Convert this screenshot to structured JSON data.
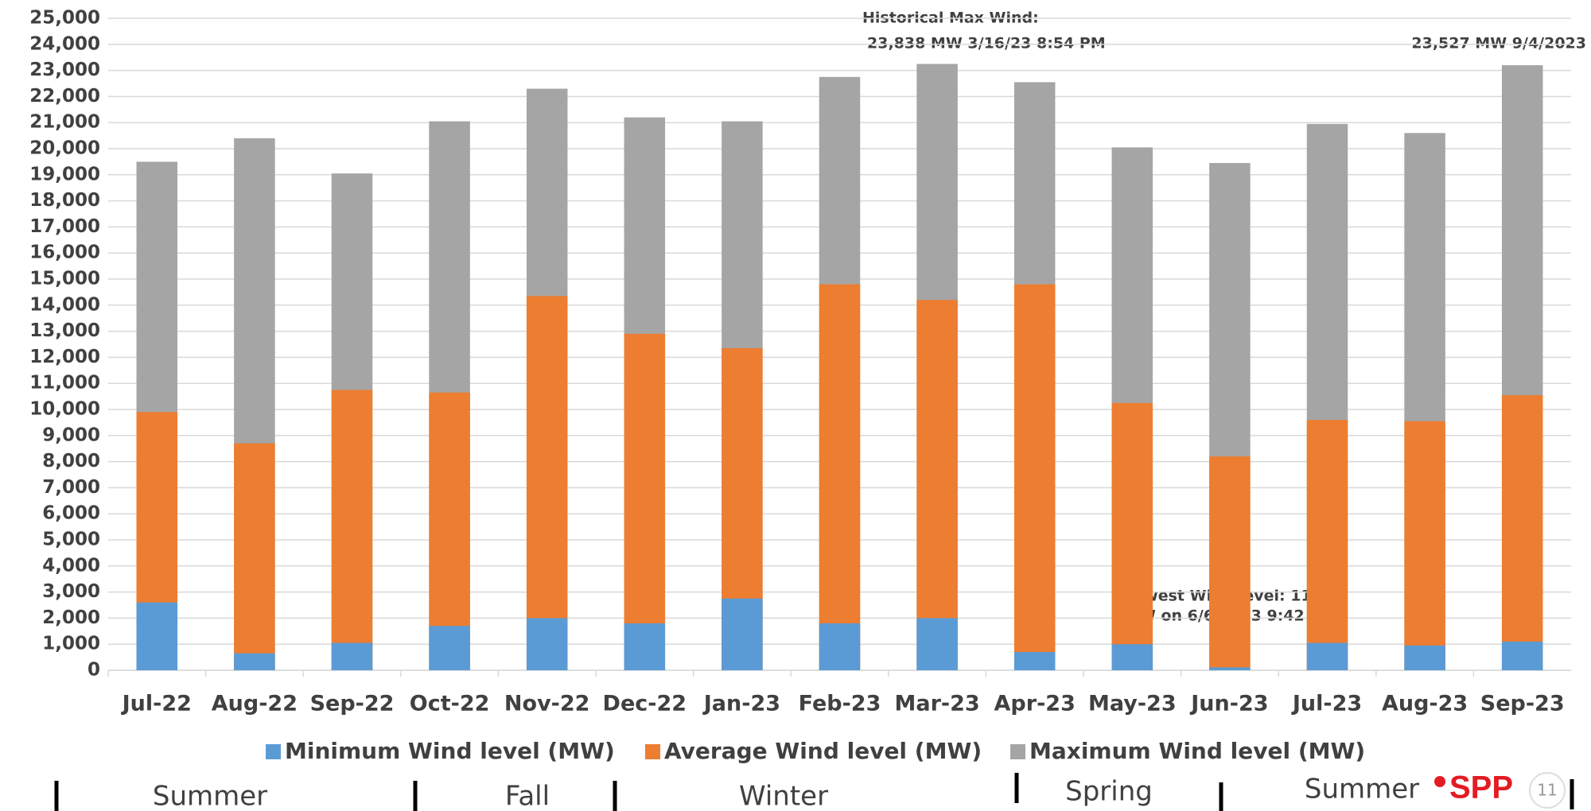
{
  "chart_data": {
    "type": "bar",
    "categories": [
      "Jul-22",
      "Aug-22",
      "Sep-22",
      "Oct-22",
      "Nov-22",
      "Dec-22",
      "Jan-23",
      "Feb-23",
      "Mar-23",
      "Apr-23",
      "May-23",
      "Jun-23",
      "Jul-23",
      "Aug-23",
      "Sep-23"
    ],
    "series": [
      {
        "name": "Minimum Wind level (MW)",
        "color": "#5b9bd5",
        "values": [
          2600,
          650,
          1050,
          1700,
          2000,
          1800,
          2750,
          1800,
          2000,
          700,
          1000,
          111,
          1050,
          950,
          1100
        ]
      },
      {
        "name": "Average Wind level (MW)",
        "color": "#ed7d31",
        "values": [
          9900,
          8700,
          10750,
          10650,
          14350,
          12900,
          12350,
          14800,
          14200,
          14800,
          10250,
          8200,
          9600,
          9550,
          10550
        ]
      },
      {
        "name": "Maximum Wind level (MW)",
        "color": "#a5a5a5",
        "values": [
          19500,
          20400,
          19050,
          21050,
          22300,
          21200,
          21050,
          22750,
          23250,
          22550,
          20050,
          19450,
          20950,
          20600,
          23200
        ]
      }
    ],
    "ylim": [
      0,
      25000
    ],
    "yticks": [
      0,
      {
        "value": 1000,
        "label": "1,000"
      },
      {
        "value": 2000,
        "label": "2,000"
      },
      {
        "value": 3000,
        "label": "3,000"
      },
      {
        "value": 4000,
        "label": "4,000"
      },
      {
        "value": 5000,
        "label": "5,000"
      },
      {
        "value": 6000,
        "label": "6,000"
      },
      {
        "value": 7000,
        "label": "7,000"
      },
      {
        "value": 8000,
        "label": "8,000"
      },
      {
        "value": 9000,
        "label": "9,000"
      },
      {
        "value": 10000,
        "label": "10,000"
      },
      {
        "value": 11000,
        "label": "11,000"
      },
      {
        "value": 12000,
        "label": "12,000"
      },
      {
        "value": 13000,
        "label": "13,000"
      },
      {
        "value": 14000,
        "label": "14,000"
      },
      {
        "value": 15000,
        "label": "15,000"
      },
      {
        "value": 16000,
        "label": "16,000"
      },
      {
        "value": 17000,
        "label": "17,000"
      },
      {
        "value": 18000,
        "label": "18,000"
      },
      {
        "value": 19000,
        "label": "19,000"
      },
      {
        "value": 20000,
        "label": "20,000"
      },
      {
        "value": 21000,
        "label": "21,000"
      },
      {
        "value": 22000,
        "label": "22,000"
      },
      {
        "value": 23000,
        "label": "23,000"
      },
      {
        "value": 24000,
        "label": "24,000"
      },
      {
        "value": 25000,
        "label": "25,000"
      }
    ],
    "grid": true,
    "annotations": [
      "Historical Max Wind:",
      "23,838  MW 3/16/23 8:54 PM",
      "23,527 MW 9/4/2023",
      "Lowest Wind level: 111",
      "MW on 6/6/2023 9:42"
    ]
  },
  "seasons": [
    "Summer",
    "Fall",
    "Winter",
    "Spring",
    "Summer"
  ],
  "logo": "SPP",
  "page_number": "11"
}
